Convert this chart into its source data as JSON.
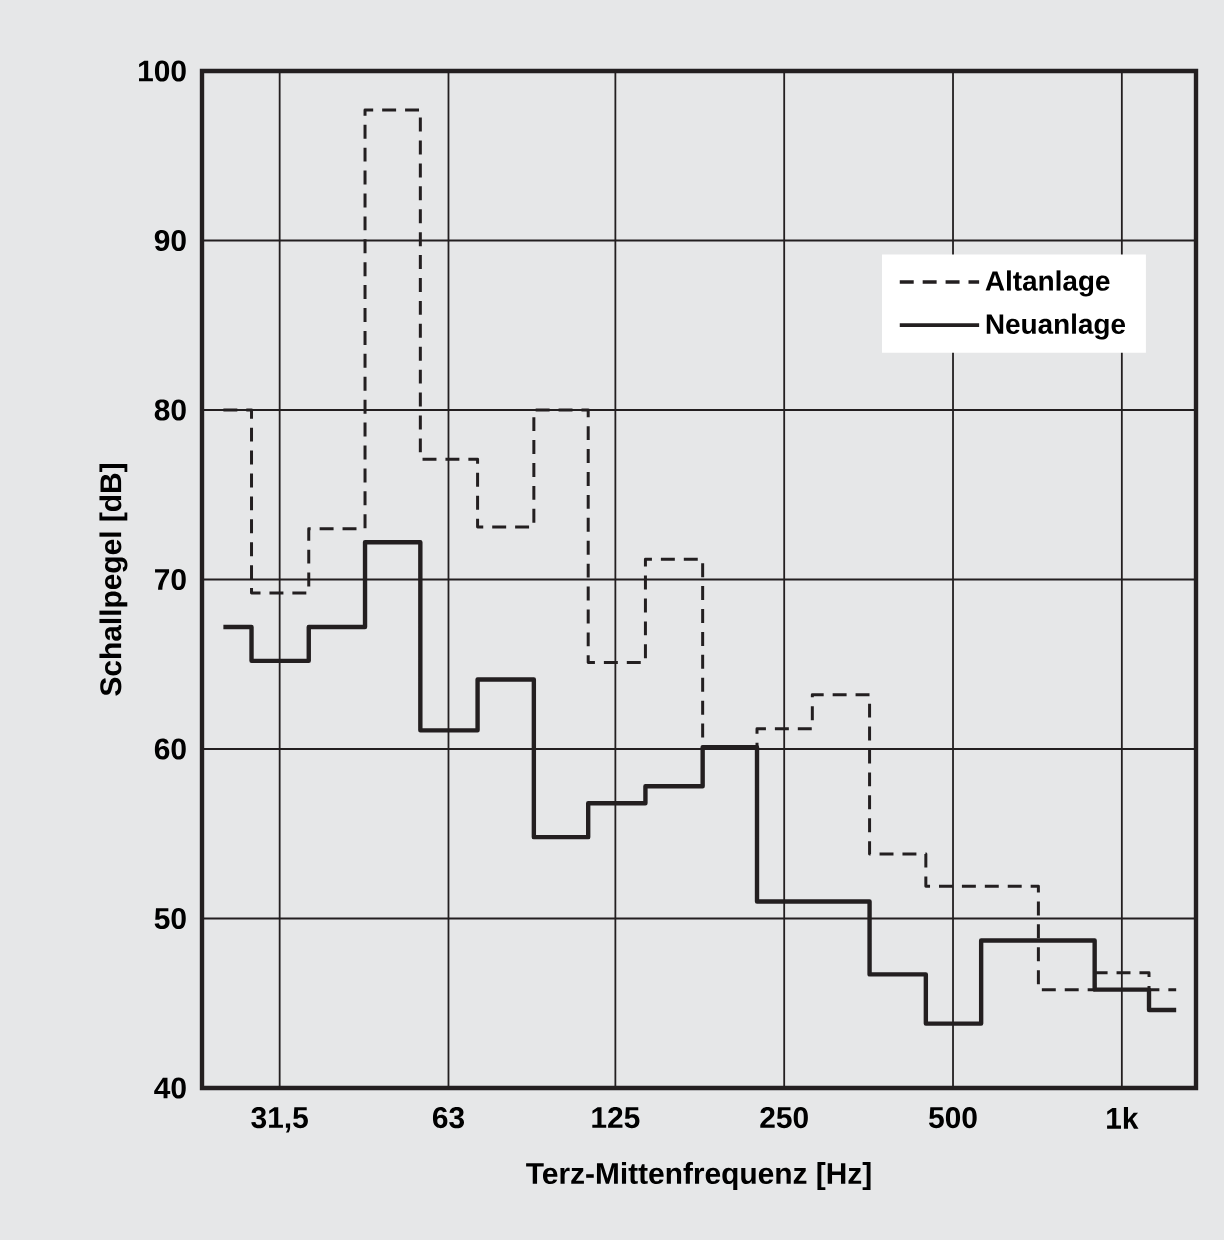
{
  "chart_data": {
    "type": "step",
    "xlabel": "Terz-Mittenfrequenz [Hz]",
    "ylabel": "Schallpegel [dB]",
    "x": [
      25,
      31.5,
      40,
      50,
      63,
      80,
      100,
      125,
      160,
      200,
      250,
      315,
      400,
      500,
      630,
      800,
      1000,
      1250
    ],
    "series": [
      {
        "name": "Altanlage",
        "color": "#231f20",
        "line_style": "dashed",
        "values": [
          80,
          69.2,
          73,
          97.7,
          77.1,
          73.1,
          80,
          65.1,
          71.2,
          60.1,
          61.2,
          63.2,
          53.8,
          51.9,
          51.9,
          45.8,
          46.8,
          45.8
        ]
      },
      {
        "name": "Neuanlage",
        "color": "#231f20",
        "line_style": "solid",
        "values": [
          67.2,
          65.2,
          67.2,
          72.2,
          61.1,
          64.1,
          54.8,
          56.8,
          57.8,
          60.1,
          51,
          51,
          46.7,
          43.8,
          48.7,
          48.7,
          45.8,
          44.6
        ]
      }
    ],
    "log": "x",
    "xlim": [
      22.9,
      1356
    ],
    "xticks": [
      {
        "value": 31.5,
        "label": "31,5"
      },
      63,
      125,
      250,
      500,
      {
        "value": 1000,
        "label": "1k"
      }
    ],
    "ylim": [
      40,
      100
    ],
    "yticks": [
      40,
      50,
      60,
      70,
      80,
      90,
      100
    ],
    "grid": true,
    "legend": "top right"
  }
}
